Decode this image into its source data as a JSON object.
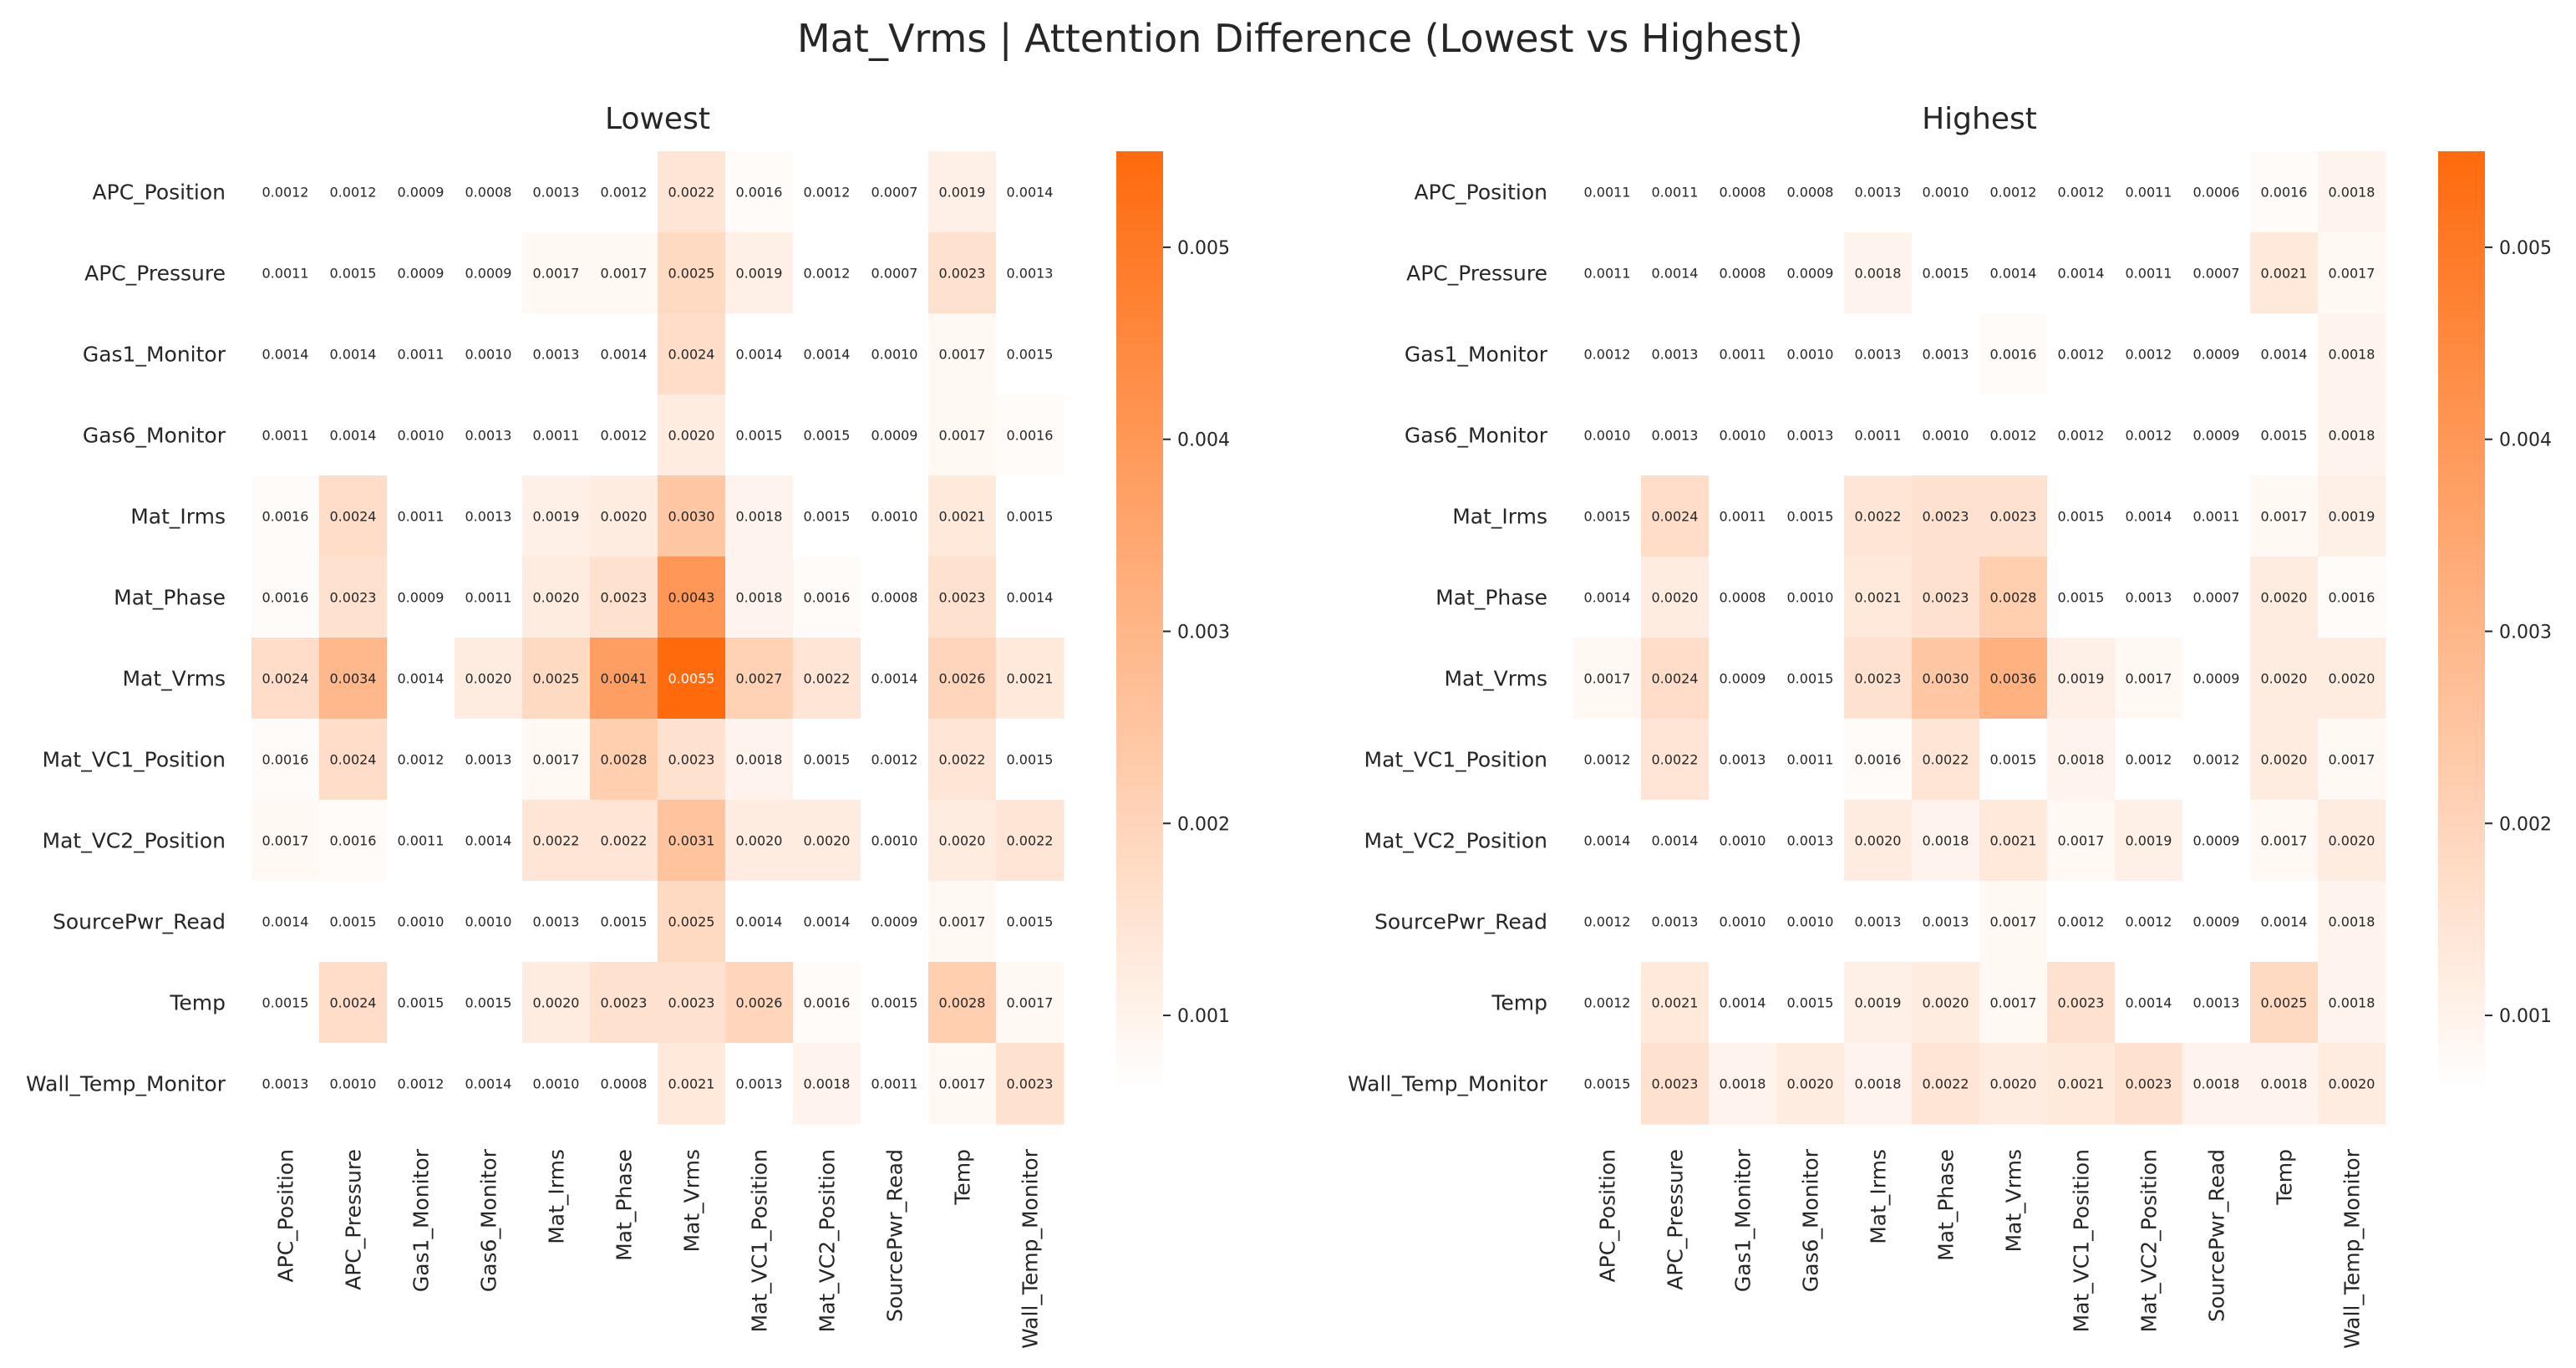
{
  "figure": {
    "suptitle": "Mat_Vrms | Attention Difference (Lowest vs Highest)"
  },
  "chart_data": [
    {
      "type": "heatmap",
      "title": "Lowest",
      "rows": [
        "APC_Position",
        "APC_Pressure",
        "Gas1_Monitor",
        "Gas6_Monitor",
        "Mat_Irms",
        "Mat_Phase",
        "Mat_Vrms",
        "Mat_VC1_Position",
        "Mat_VC2_Position",
        "SourcePwr_Read",
        "Temp",
        "Wall_Temp_Monitor"
      ],
      "columns": [
        "APC_Position",
        "APC_Pressure",
        "Gas1_Monitor",
        "Gas6_Monitor",
        "Mat_Irms",
        "Mat_Phase",
        "Mat_Vrms",
        "Mat_VC1_Position",
        "Mat_VC2_Position",
        "SourcePwr_Read",
        "Temp",
        "Wall_Temp_Monitor"
      ],
      "values": [
        [
          0.0012,
          0.0012,
          0.0009,
          0.0008,
          0.0013,
          0.0012,
          0.0022,
          0.0016,
          0.0012,
          0.0007,
          0.0019,
          0.0014
        ],
        [
          0.0011,
          0.0015,
          0.0009,
          0.0009,
          0.0017,
          0.0017,
          0.0025,
          0.0019,
          0.0012,
          0.0007,
          0.0023,
          0.0013
        ],
        [
          0.0014,
          0.0014,
          0.0011,
          0.001,
          0.0013,
          0.0014,
          0.0024,
          0.0014,
          0.0014,
          0.001,
          0.0017,
          0.0015
        ],
        [
          0.0011,
          0.0014,
          0.001,
          0.0013,
          0.0011,
          0.0012,
          0.002,
          0.0015,
          0.0015,
          0.0009,
          0.0017,
          0.0016
        ],
        [
          0.0016,
          0.0024,
          0.0011,
          0.0013,
          0.0019,
          0.002,
          0.003,
          0.0018,
          0.0015,
          0.001,
          0.0021,
          0.0015
        ],
        [
          0.0016,
          0.0023,
          0.0009,
          0.0011,
          0.002,
          0.0023,
          0.0043,
          0.0018,
          0.0016,
          0.0008,
          0.0023,
          0.0014
        ],
        [
          0.0024,
          0.0034,
          0.0014,
          0.002,
          0.0025,
          0.0041,
          0.0055,
          0.0027,
          0.0022,
          0.0014,
          0.0026,
          0.0021
        ],
        [
          0.0016,
          0.0024,
          0.0012,
          0.0013,
          0.0017,
          0.0028,
          0.0023,
          0.0018,
          0.0015,
          0.0012,
          0.0022,
          0.0015
        ],
        [
          0.0017,
          0.0016,
          0.0011,
          0.0014,
          0.0022,
          0.0022,
          0.0031,
          0.002,
          0.002,
          0.001,
          0.002,
          0.0022
        ],
        [
          0.0014,
          0.0015,
          0.001,
          0.001,
          0.0013,
          0.0015,
          0.0025,
          0.0014,
          0.0014,
          0.0009,
          0.0017,
          0.0015
        ],
        [
          0.0015,
          0.0024,
          0.0015,
          0.0015,
          0.002,
          0.0023,
          0.0023,
          0.0026,
          0.0016,
          0.0015,
          0.0028,
          0.0017
        ],
        [
          0.0013,
          0.001,
          0.0012,
          0.0014,
          0.001,
          0.0008,
          0.0021,
          0.0013,
          0.0018,
          0.0011,
          0.0017,
          0.0023
        ]
      ],
      "colorbar": {
        "ticks": [
          0.001,
          0.002,
          0.003,
          0.004,
          0.005
        ],
        "tick_labels": [
          "0.001",
          "0.002",
          "0.003",
          "0.004",
          "0.005"
        ],
        "vmin": 0.0015,
        "vmax": 0.0055
      },
      "colors": {
        "low": "#ffffff",
        "high": "#ff6a0d"
      }
    },
    {
      "type": "heatmap",
      "title": "Highest",
      "rows": [
        "APC_Position",
        "APC_Pressure",
        "Gas1_Monitor",
        "Gas6_Monitor",
        "Mat_Irms",
        "Mat_Phase",
        "Mat_Vrms",
        "Mat_VC1_Position",
        "Mat_VC2_Position",
        "SourcePwr_Read",
        "Temp",
        "Wall_Temp_Monitor"
      ],
      "columns": [
        "APC_Position",
        "APC_Pressure",
        "Gas1_Monitor",
        "Gas6_Monitor",
        "Mat_Irms",
        "Mat_Phase",
        "Mat_Vrms",
        "Mat_VC1_Position",
        "Mat_VC2_Position",
        "SourcePwr_Read",
        "Temp",
        "Wall_Temp_Monitor"
      ],
      "values": [
        [
          0.0011,
          0.0011,
          0.0008,
          0.0008,
          0.0013,
          0.001,
          0.0012,
          0.0012,
          0.0011,
          0.0006,
          0.0016,
          0.0018
        ],
        [
          0.0011,
          0.0014,
          0.0008,
          0.0009,
          0.0018,
          0.0015,
          0.0014,
          0.0014,
          0.0011,
          0.0007,
          0.0021,
          0.0017
        ],
        [
          0.0012,
          0.0013,
          0.0011,
          0.001,
          0.0013,
          0.0013,
          0.0016,
          0.0012,
          0.0012,
          0.0009,
          0.0014,
          0.0018
        ],
        [
          0.001,
          0.0013,
          0.001,
          0.0013,
          0.0011,
          0.001,
          0.0012,
          0.0012,
          0.0012,
          0.0009,
          0.0015,
          0.0018
        ],
        [
          0.0015,
          0.0024,
          0.0011,
          0.0015,
          0.0022,
          0.0023,
          0.0023,
          0.0015,
          0.0014,
          0.0011,
          0.0017,
          0.0019
        ],
        [
          0.0014,
          0.002,
          0.0008,
          0.001,
          0.0021,
          0.0023,
          0.0028,
          0.0015,
          0.0013,
          0.0007,
          0.002,
          0.0016
        ],
        [
          0.0017,
          0.0024,
          0.0009,
          0.0015,
          0.0023,
          0.003,
          0.0036,
          0.0019,
          0.0017,
          0.0009,
          0.002,
          0.002
        ],
        [
          0.0012,
          0.0022,
          0.0013,
          0.0011,
          0.0016,
          0.0022,
          0.0015,
          0.0018,
          0.0012,
          0.0012,
          0.002,
          0.0017
        ],
        [
          0.0014,
          0.0014,
          0.001,
          0.0013,
          0.002,
          0.0018,
          0.0021,
          0.0017,
          0.0019,
          0.0009,
          0.0017,
          0.002
        ],
        [
          0.0012,
          0.0013,
          0.001,
          0.001,
          0.0013,
          0.0013,
          0.0017,
          0.0012,
          0.0012,
          0.0009,
          0.0014,
          0.0018
        ],
        [
          0.0012,
          0.0021,
          0.0014,
          0.0015,
          0.0019,
          0.002,
          0.0017,
          0.0023,
          0.0014,
          0.0013,
          0.0025,
          0.0018
        ],
        [
          0.0015,
          0.0023,
          0.0018,
          0.002,
          0.0018,
          0.0022,
          0.002,
          0.0021,
          0.0023,
          0.0018,
          0.0018,
          0.002
        ]
      ],
      "colorbar": {
        "ticks": [
          0.001,
          0.002,
          0.003,
          0.004,
          0.005
        ],
        "tick_labels": [
          "0.001",
          "0.002",
          "0.003",
          "0.004",
          "0.005"
        ],
        "vmin": 0.0015,
        "vmax": 0.0055
      },
      "colors": {
        "low": "#ffffff",
        "high": "#ff6a0d"
      }
    }
  ]
}
